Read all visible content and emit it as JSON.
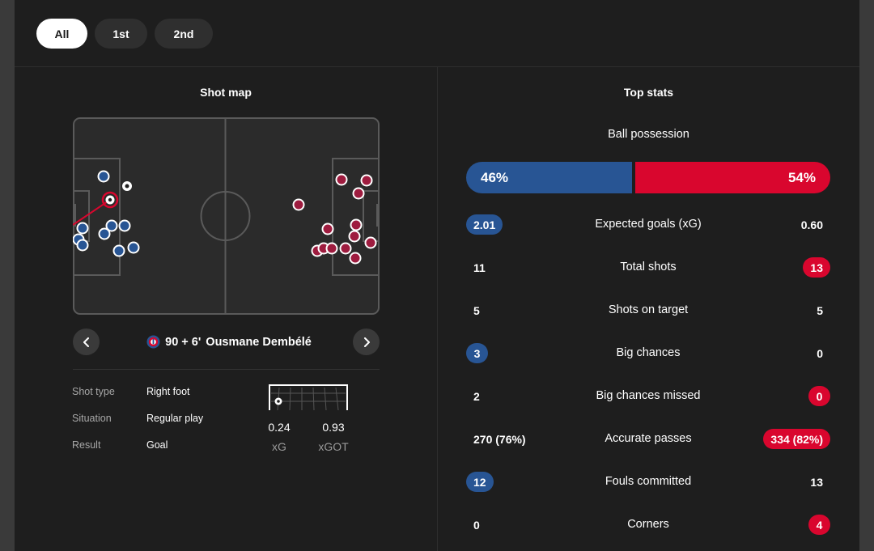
{
  "period_tabs": [
    {
      "label": "All",
      "active": true
    },
    {
      "label": "1st",
      "active": false
    },
    {
      "label": "2nd",
      "active": false
    }
  ],
  "shot_map": {
    "title": "Shot map",
    "selected_shot": {
      "minute": "90 + 6'",
      "player": "Ousmane Dembélé",
      "team_icon": "psg-crest-icon",
      "details": [
        {
          "label": "Shot type",
          "value": "Right foot"
        },
        {
          "label": "Situation",
          "value": "Regular play"
        },
        {
          "label": "Result",
          "value": "Goal"
        }
      ],
      "xg": {
        "value": "0.24",
        "label": "xG"
      },
      "xgot": {
        "value": "0.93",
        "label": "xGOT"
      }
    },
    "home_shot_count": 11,
    "away_shot_count": 13,
    "nav_icons": [
      "chevron-left-icon",
      "chevron-right-icon"
    ]
  },
  "top_stats": {
    "title": "Top stats",
    "possession": {
      "label": "Ball possession",
      "home": "46%",
      "away": "54%",
      "home_value": 46,
      "away_value": 54
    },
    "rows": [
      {
        "label": "Expected goals (xG)",
        "home": "2.01",
        "away": "0.60",
        "highlight": "home"
      },
      {
        "label": "Total shots",
        "home": "11",
        "away": "13",
        "highlight": "away"
      },
      {
        "label": "Shots on target",
        "home": "5",
        "away": "5",
        "highlight": "none"
      },
      {
        "label": "Big chances",
        "home": "3",
        "away": "0",
        "highlight": "home"
      },
      {
        "label": "Big chances missed",
        "home": "2",
        "away": "0",
        "highlight": "away"
      },
      {
        "label": "Accurate passes",
        "home": "270 (76%)",
        "away": "334 (82%)",
        "highlight": "away"
      },
      {
        "label": "Fouls committed",
        "home": "12",
        "away": "13",
        "highlight": "home"
      },
      {
        "label": "Corners",
        "home": "0",
        "away": "4",
        "highlight": "away"
      }
    ]
  },
  "colors": {
    "home": "#285594",
    "away": "#d9062e",
    "away_shot": "#9e1c3f",
    "background": "#1e1e1e",
    "pitch_lines": "#5a5a5a"
  }
}
